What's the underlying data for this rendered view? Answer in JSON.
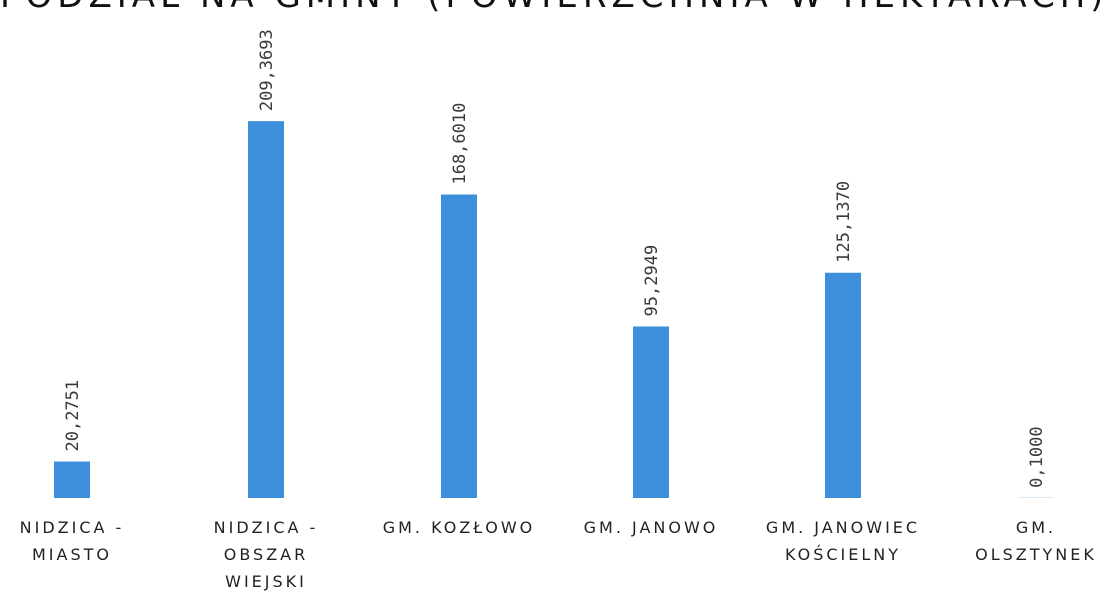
{
  "chart_data": {
    "type": "bar",
    "title": "PODZIAŁ NA GMINY (POWIERZCHNIA W HEKTARACH)",
    "categories": [
      [
        "NIDZICA -",
        "MIASTO"
      ],
      [
        "NIDZICA -",
        "OBSZAR",
        "WIEJSKI"
      ],
      [
        "GM. KOZŁOWO"
      ],
      [
        "GM. JANOWO"
      ],
      [
        "GM. JANOWIEC",
        "KOŚCIELNY"
      ],
      [
        "GM.",
        "OLSZTYNEK"
      ]
    ],
    "values": [
      20.2751,
      209.3693,
      168.601,
      95.2949,
      125.137,
      0.1
    ],
    "data_labels": [
      "20,2751",
      "209,3693",
      "168,6010",
      "95,2949",
      "125,1370",
      "0,1000"
    ],
    "ylim": [
      0,
      240
    ],
    "grid": false,
    "legend": "none",
    "bar_color": "#3d8fdb"
  }
}
